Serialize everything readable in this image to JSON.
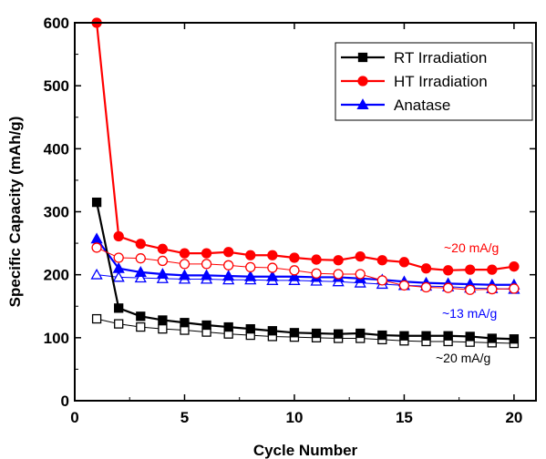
{
  "chart_data": {
    "type": "line",
    "xlabel": "Cycle Number",
    "ylabel": "Specific Capacity (mAh/g)",
    "xlim": [
      0,
      21
    ],
    "ylim": [
      0,
      600
    ],
    "xticks": [
      0,
      5,
      10,
      15,
      20
    ],
    "yticks": [
      0,
      100,
      200,
      300,
      400,
      500,
      600
    ],
    "grid": false,
    "legend_position": "top-right",
    "x": [
      1,
      2,
      3,
      4,
      5,
      6,
      7,
      8,
      9,
      10,
      11,
      12,
      13,
      14,
      15,
      16,
      17,
      18,
      19,
      20
    ],
    "series": [
      {
        "name": "RT Irradiation",
        "color": "#000000",
        "marker": "square",
        "values": [
          315,
          147,
          134,
          128,
          124,
          120,
          117,
          114,
          111,
          108,
          107,
          106,
          107,
          104,
          103,
          103,
          103,
          102,
          99,
          98
        ],
        "open_values": [
          130,
          122,
          117,
          114,
          112,
          109,
          106,
          104,
          102,
          101,
          100,
          99,
          99,
          97,
          95,
          94,
          94,
          93,
          92,
          91
        ]
      },
      {
        "name": "HT Irradiation",
        "color": "#ff0000",
        "marker": "circle",
        "values": [
          600,
          261,
          249,
          241,
          234,
          234,
          236,
          231,
          231,
          227,
          224,
          223,
          229,
          223,
          220,
          210,
          207,
          208,
          208,
          213
        ],
        "open_values": [
          243,
          227,
          226,
          222,
          217,
          217,
          215,
          212,
          211,
          207,
          202,
          201,
          201,
          191,
          183,
          180,
          179,
          176,
          177,
          178
        ]
      },
      {
        "name": "Anatase",
        "color": "#0000ff",
        "marker": "triangle",
        "values": [
          257,
          210,
          204,
          201,
          199,
          199,
          198,
          197,
          197,
          197,
          196,
          196,
          194,
          192,
          189,
          187,
          186,
          185,
          184,
          184
        ],
        "open_values": [
          200,
          196,
          195,
          194,
          193,
          193,
          192,
          192,
          191,
          191,
          190,
          189,
          187,
          185,
          183,
          182,
          181,
          179,
          178,
          177
        ]
      }
    ],
    "annotations": [
      {
        "text": "~20 mA/g",
        "color": "#ff0000"
      },
      {
        "text": "~13 mA/g",
        "color": "#0000ff"
      },
      {
        "text": "~20 mA/g",
        "color": "#000000"
      }
    ]
  }
}
